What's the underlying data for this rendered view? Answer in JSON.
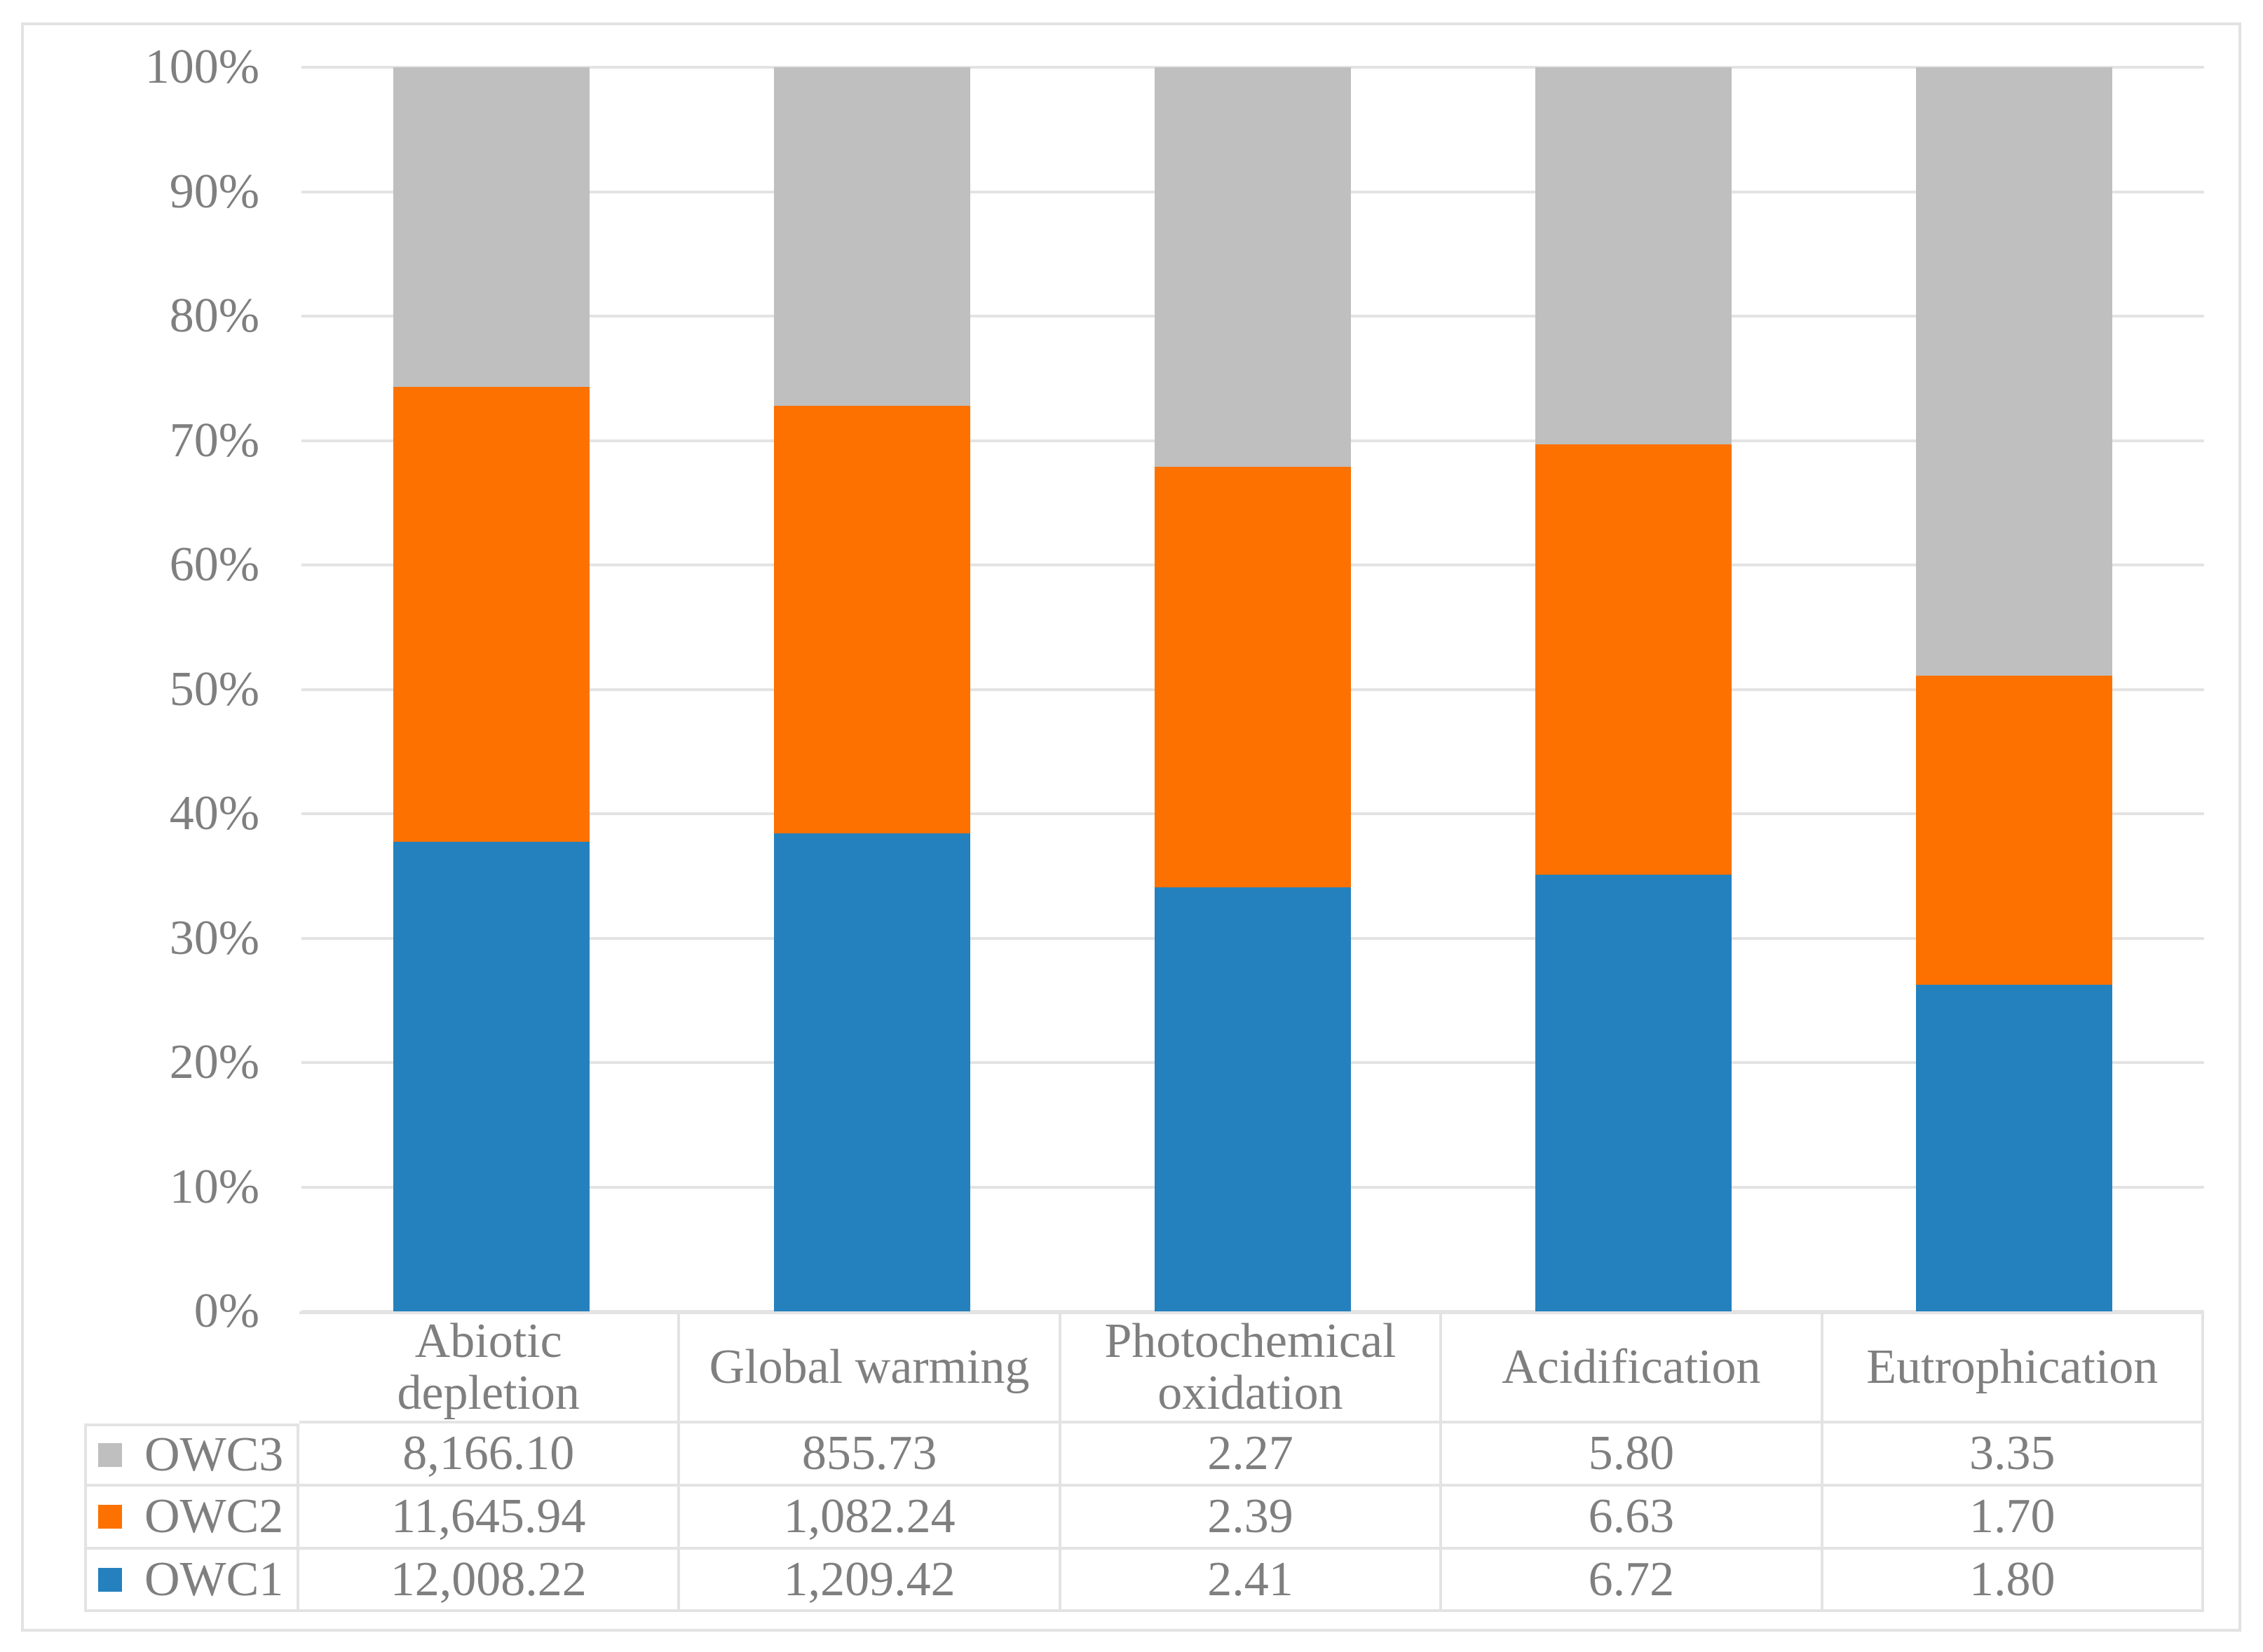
{
  "figure": {
    "description": "100% stacked column chart with data table legend",
    "background": "#FFFFFF",
    "frame_border_color": "#E2E2E2"
  },
  "colors": {
    "owc1_blue": "#2581BD",
    "owc2_orange": "#FC7100",
    "owc3_gray": "#BFBFBF",
    "gridline": "#E3E3E3",
    "table_border": "#E3E3E3",
    "text_gray": "#7F7F7F"
  },
  "chart_data": {
    "type": "bar",
    "subtype": "100-percent-stacked-column",
    "categories": [
      "Abiotic depletion",
      "Global warming",
      "Photochemical oxidation",
      "Acidification",
      "Eutrophication"
    ],
    "series": [
      {
        "name": "OWC1",
        "color": "#2581BD",
        "values": [
          12008.22,
          1209.42,
          2.41,
          6.72,
          1.8
        ]
      },
      {
        "name": "OWC2",
        "color": "#FC7100",
        "values": [
          11645.94,
          1082.24,
          2.39,
          6.63,
          1.7
        ]
      },
      {
        "name": "OWC3",
        "color": "#BFBFBF",
        "values": [
          8166.1,
          855.73,
          2.27,
          5.8,
          3.35
        ]
      }
    ],
    "stack_order_bottom_to_top": [
      "OWC1",
      "OWC2",
      "OWC3"
    ],
    "y_axis": {
      "tick_labels": [
        "0%",
        "10%",
        "20%",
        "30%",
        "40%",
        "50%",
        "60%",
        "70%",
        "80%",
        "90%",
        "100%"
      ],
      "min": 0,
      "max": 100,
      "grid": true
    },
    "legend_position": "table-left-column"
  },
  "table": {
    "column_headers": [
      "Abiotic\ndepletion",
      "Global warming",
      "Photochemical\noxidation",
      "Acidification",
      "Eutrophication"
    ],
    "rows": [
      {
        "label": "OWC3",
        "swatch_color": "#BFBFBF",
        "values": [
          "8,166.10",
          "855.73",
          "2.27",
          "5.80",
          "3.35"
        ]
      },
      {
        "label": "OWC2",
        "swatch_color": "#FC7100",
        "values": [
          "11,645.94",
          "1,082.24",
          "2.39",
          "6.63",
          "1.70"
        ]
      },
      {
        "label": "OWC1",
        "swatch_color": "#2581BD",
        "values": [
          "12,008.22",
          "1,209.42",
          "2.41",
          "6.72",
          "1.80"
        ]
      }
    ]
  }
}
